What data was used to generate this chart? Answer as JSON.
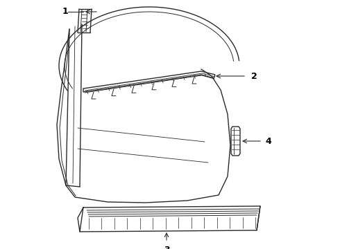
{
  "background_color": "#ffffff",
  "line_color": "#2a2a2a",
  "label_color": "#000000",
  "lw": 1.0,
  "fig_w": 4.9,
  "fig_h": 3.6,
  "dpi": 100
}
